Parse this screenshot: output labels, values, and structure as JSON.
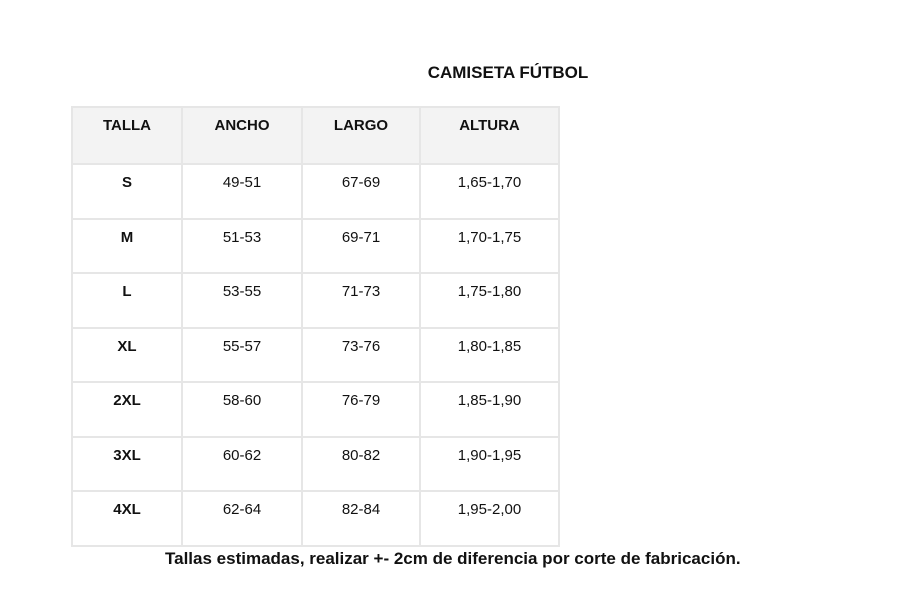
{
  "title": "CAMISETA FÚTBOL",
  "headers": [
    "TALLA",
    "ANCHO",
    "LARGO",
    "ALTURA"
  ],
  "rows": [
    [
      "S",
      "49-51",
      "67-69",
      "1,65-1,70"
    ],
    [
      "M",
      "51-53",
      "69-71",
      "1,70-1,75"
    ],
    [
      "L",
      "53-55",
      "71-73",
      "1,75-1,80"
    ],
    [
      "XL",
      "55-57",
      "73-76",
      "1,80-1,85"
    ],
    [
      "2XL",
      "58-60",
      "76-79",
      "1,85-1,90"
    ],
    [
      "3XL",
      "60-62",
      "80-82",
      "1,90-1,95"
    ],
    [
      "4XL",
      "62-64",
      "82-84",
      "1,95-2,00"
    ]
  ],
  "note": "Tallas estimadas, realizar +- 2cm de diferencia por corte de fabricación."
}
